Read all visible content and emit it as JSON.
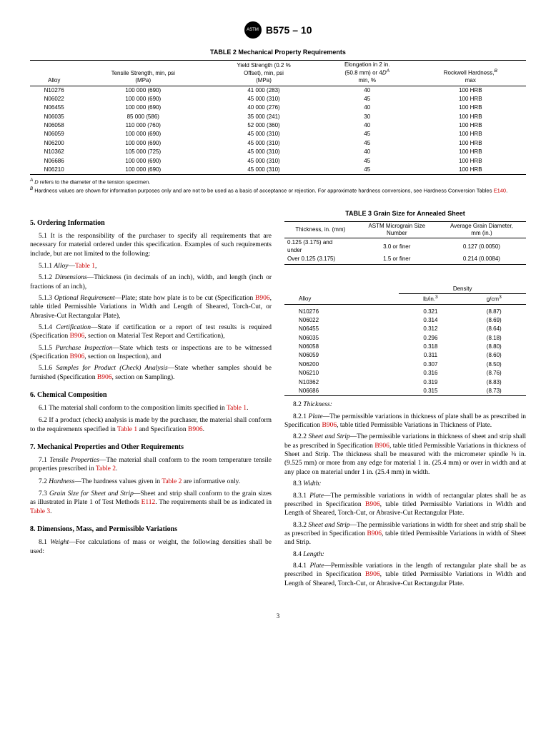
{
  "header": {
    "badge": "ASTM",
    "doc_id": "B575 – 10"
  },
  "table2": {
    "caption": "TABLE 2 Mechanical Property Requirements",
    "columns": [
      "Alloy",
      "Tensile Strength, min, psi (MPa)",
      "Yield Strength (0.2 % Offset), min, psi (MPa)",
      "Elongation in 2 in. (50.8 mm) or 4D",
      "min, %",
      "Rockwell Hardness,",
      "max"
    ],
    "col1": "Alloy",
    "col2": "Tensile Strength, min, psi\n(MPa)",
    "col3": "Yield Strength (0.2 %\nOffset), min, psi\n(MPa)",
    "col4_l1": "Elongation in 2 in.",
    "col4_l2": "(50.8 mm) or 4",
    "col4_l3": "min, %",
    "col5_l1": "Rockwell Hardness,",
    "col5_l2": "max",
    "sup_a": "A",
    "sup_b": "B",
    "sup_d": "D",
    "rows": [
      {
        "alloy": "N10276",
        "tensile": "100 000 (690)",
        "yield": "41 000 (283)",
        "elong": "40",
        "hard": "100 HRB"
      },
      {
        "alloy": "N06022",
        "tensile": "100 000 (690)",
        "yield": "45 000 (310)",
        "elong": "45",
        "hard": "100 HRB"
      },
      {
        "alloy": "N06455",
        "tensile": "100 000 (690)",
        "yield": "40 000 (276)",
        "elong": "40",
        "hard": "100 HRB"
      },
      {
        "alloy": "N06035",
        "tensile": "85 000 (586)",
        "yield": "35 000 (241)",
        "elong": "30",
        "hard": "100 HRB"
      },
      {
        "alloy": "N06058",
        "tensile": "110 000 (760)",
        "yield": "52 000 (360)",
        "elong": "40",
        "hard": "100 HRB"
      },
      {
        "alloy": "N06059",
        "tensile": "100 000 (690)",
        "yield": "45 000 (310)",
        "elong": "45",
        "hard": "100 HRB"
      },
      {
        "alloy": "N06200",
        "tensile": "100 000 (690)",
        "yield": "45 000 (310)",
        "elong": "45",
        "hard": "100 HRB"
      },
      {
        "alloy": "N10362",
        "tensile": "105 000 (725)",
        "yield": "45 000 (310)",
        "elong": "40",
        "hard": "100 HRB"
      },
      {
        "alloy": "N06686",
        "tensile": "100 000 (690)",
        "yield": "45 000 (310)",
        "elong": "45",
        "hard": "100 HRB"
      },
      {
        "alloy": "N06210",
        "tensile": "100 000 (690)",
        "yield": "45 000 (310)",
        "elong": "45",
        "hard": "100 HRB"
      }
    ],
    "foot_a_pre": " refers to the diameter of the tension specimen.",
    "foot_b_pre": " Hardness values are shown for information purposes only and are not to be used as a basis of acceptance or rejection. For approximate hardness conversions, see Hardness Conversion Tables ",
    "foot_b_ref": "E140",
    "dot": "."
  },
  "s5": {
    "title": "5.  Ordering Information",
    "p51": "5.1 It is the responsibility of the purchaser to specify all requirements that are necessary for material ordered under this specification. Examples of such requirements include, but are not limited to the following:",
    "p511_a": "5.1.1 ",
    "p511_i": "Alloy",
    "p511_b": "—",
    "p511_ref": "Table 1",
    "p511_c": ",",
    "p512_a": "5.1.2 ",
    "p512_i": "Dimensions",
    "p512_b": "—Thickness (in decimals of an inch), width, and length (inch or fractions of an inch),",
    "p513_a": "5.1.3 ",
    "p513_i": "Optional Requirement",
    "p513_b": "—Plate; state how plate is to be cut (Specification ",
    "p513_ref": "B906",
    "p513_c": ", table titled Permissible Variations in Width and Length of Sheared, Torch-Cut, or Abrasive-Cut Rectangular Plate),",
    "p514_a": "5.1.4 ",
    "p514_i": "Certification",
    "p514_b": "—State if certification or a report of test results is required (Specification ",
    "p514_ref": "B906",
    "p514_c": ", section on Material Test Report and Certification),",
    "p515_a": "5.1.5 ",
    "p515_i": "Purchase Inspection",
    "p515_b": "—State which tests or inspections are to be witnessed (Specification ",
    "p515_ref": "B906",
    "p515_c": ", section on Inspection), and",
    "p516_a": "5.1.6 ",
    "p516_i": "Samples for Product (Check) Analysis",
    "p516_b": "—State whether samples should be furnished (Specification ",
    "p516_ref": "B906",
    "p516_c": ", section on Sampling)."
  },
  "s6": {
    "title": "6.  Chemical Composition",
    "p61_a": "6.1 The material shall conform to the composition limits specified in ",
    "p61_ref": "Table 1",
    "p61_b": ".",
    "p62_a": "6.2 If a product (check) analysis is made by the purchaser, the material shall conform to the requirements specified in ",
    "p62_ref1": "Table 1",
    "p62_b": " and Specification ",
    "p62_ref2": "B906",
    "p62_c": "."
  },
  "s7": {
    "title": "7.  Mechanical Properties and Other Requirements",
    "p71_a": "7.1 ",
    "p71_i": "Tensile Properties",
    "p71_b": "—The material shall conform to the room temperature tensile properties prescribed in ",
    "p71_ref": "Table 2",
    "p71_c": ".",
    "p72_a": "7.2 ",
    "p72_i": "Hardness",
    "p72_b": "—The hardness values given in ",
    "p72_ref": "Table 2",
    "p72_c": " are informative only.",
    "p73_a": "7.3 ",
    "p73_i": "Grain Size for Sheet and Strip",
    "p73_b": "—Sheet and strip shall conform to the grain sizes as illustrated in Plate 1 of Test Methods ",
    "p73_ref1": "E112",
    "p73_c": ". The requirements shall be as indicated in ",
    "p73_ref2": "Table 3",
    "p73_d": "."
  },
  "s8": {
    "title": "8.  Dimensions, Mass, and Permissible Variations",
    "p81_a": "8.1 ",
    "p81_i": "Weight",
    "p81_b": "—For calculations of mass or weight, the following densities shall be used:"
  },
  "table3": {
    "caption": "TABLE 3 Grain Size for Annealed Sheet",
    "col1": "Thickness, in. (mm)",
    "col2": "ASTM Micrograin Size\nNumber",
    "col3": "Average Grain Diameter,\nmm (in.)",
    "rows": [
      {
        "th": "0.125 (3.175) and\nunder",
        "sz": "3.0 or finer",
        "dia": "0.127 (0.0050)"
      },
      {
        "th": "Over 0.125 (3.175)",
        "sz": "1.5 or finer",
        "dia": "0.214 (0.0084)"
      }
    ]
  },
  "density": {
    "hdr_alloy": "Alloy",
    "hdr_dens": "Density",
    "hdr_lb": "lb/in.",
    "hdr_g": "g/cm",
    "sup3": "3",
    "rows": [
      {
        "a": "N10276",
        "lb": "0.321",
        "g": "(8.87)"
      },
      {
        "a": "N06022",
        "lb": "0.314",
        "g": "(8.69)"
      },
      {
        "a": "N06455",
        "lb": "0.312",
        "g": "(8.64)"
      },
      {
        "a": "N06035",
        "lb": "0.296",
        "g": "(8.18)"
      },
      {
        "a": "N06058",
        "lb": "0.318",
        "g": "(8.80)"
      },
      {
        "a": "N06059",
        "lb": "0.311",
        "g": "(8.60)"
      },
      {
        "a": "N06200",
        "lb": "0.307",
        "g": "(8.50)"
      },
      {
        "a": "N06210",
        "lb": "0.316",
        "g": "(8.76)"
      },
      {
        "a": "N10362",
        "lb": "0.319",
        "g": "(8.83)"
      },
      {
        "a": "N06686",
        "lb": "0.315",
        "g": "(8.73)"
      }
    ]
  },
  "s8r": {
    "p82": "8.2 ",
    "p82_i": "Thickness:",
    "p821_a": "8.2.1 ",
    "p821_i": "Plate",
    "p821_b": "—The permissible variations in thickness of plate shall be as prescribed in Specification ",
    "p821_ref": "B906",
    "p821_c": ", table titled Permissible Variations in Thickness of Plate.",
    "p822_a": "8.2.2 ",
    "p822_i": "Sheet and Strip",
    "p822_b": "—The permissible variations in thickness of sheet and strip shall be as prescribed in Specification ",
    "p822_ref": "B906",
    "p822_c": ", table titled Permissible Variations in thickness of Sheet and Strip. The thickness shall be measured with the micrometer spindle ⅜ in. (9.525 mm) or more from any edge for material 1 in. (25.4 mm) or over in width and at any place on material under 1 in. (25.4 mm) in width.",
    "p83": "8.3 ",
    "p83_i": "Width:",
    "p831_a": "8.3.1 ",
    "p831_i": "Plate",
    "p831_b": "—The permissible variations in width of rectangular plates shall be as prescribed in Specification ",
    "p831_ref": "B906",
    "p831_c": ", table titled Permissible Variations in Width and Length of Sheared, Torch-Cut, or Abrasive-Cut Rectangular Plate.",
    "p832_a": "8.3.2 ",
    "p832_i": "Sheet and Strip",
    "p832_b": "—The permissible variations in width for sheet and strip shall be as prescribed in Specification ",
    "p832_ref": "B906",
    "p832_c": ", table titled Permissible Variations in width of Sheet and Strip.",
    "p84": "8.4 ",
    "p84_i": "Length:",
    "p841_a": "8.4.1 ",
    "p841_i": "Plate",
    "p841_b": "—Permissible variations in the length of rectangular plate shall be as prescribed in Specification ",
    "p841_ref": "B906",
    "p841_c": ", table titled Permissible Variations in Width and Length of Sheared, Torch-Cut, or Abrasive-Cut Rectangular Plate."
  },
  "page": "3"
}
